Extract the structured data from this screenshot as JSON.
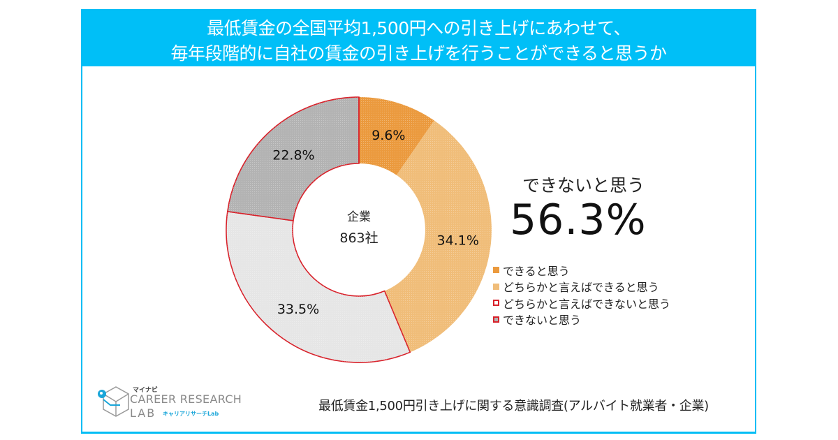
{
  "header": {
    "line1": "最低賃金の全国平均1,500円への引き上げにあわせて、",
    "line2": "毎年段階的に自社の賃金の引き上げを行うことができると思うか"
  },
  "callout": {
    "label": "できないと思う",
    "value": "56.3%"
  },
  "footer": {
    "survey_title": "最低賃金1,500円引き上げに関する意識調査(アルバイト就業者・企業)"
  },
  "logo": {
    "brand_small": "マイナビ",
    "line1": "CAREER RESEARCH",
    "line2": "LAB",
    "sub": "キャリアリサーチLab"
  },
  "colors": {
    "accent": "#00bff7",
    "can": "#eb9a3e",
    "somewhat_can": "#f0bd79",
    "somewhat_cannot": "#e6e6e6",
    "cannot": "#b3b3b3",
    "cannot_border": "#d8212a"
  },
  "chart_data": {
    "type": "pie",
    "subtype": "donut",
    "title": "最低賃金の全国平均1,500円への引き上げにあわせて、毎年段階的に自社の賃金の引き上げを行うことができると思うか",
    "center_label": [
      "企業",
      "863社"
    ],
    "unit": "%",
    "start": "12 o'clock, clockwise",
    "legend_position": "right",
    "slices": [
      {
        "label": "できると思う",
        "value": 9.6,
        "display": "9.6%",
        "color": "#eb9a3e",
        "border": "none"
      },
      {
        "label": "どちらかと言えばできると思う",
        "value": 34.1,
        "display": "34.1%",
        "color": "#f0bd79",
        "border": "none"
      },
      {
        "label": "どちらかと言えばできないと思う",
        "value": 33.5,
        "display": "33.5%",
        "color": "#e6e6e6",
        "border": "#d8212a"
      },
      {
        "label": "できないと思う",
        "value": 22.8,
        "display": "22.8%",
        "color": "#b3b3b3",
        "border": "#d8212a"
      }
    ]
  }
}
